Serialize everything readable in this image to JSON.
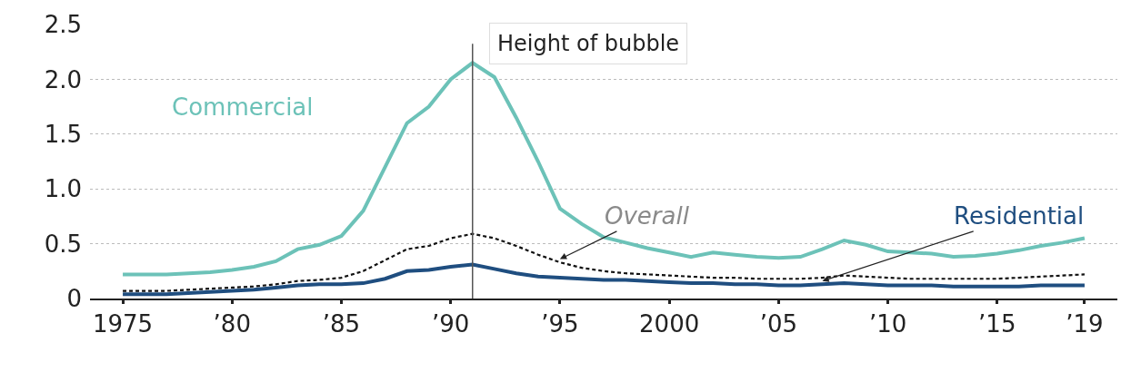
{
  "chart_data": {
    "type": "line",
    "x": [
      1975,
      1976,
      1977,
      1978,
      1979,
      1980,
      1981,
      1982,
      1983,
      1984,
      1985,
      1986,
      1987,
      1988,
      1989,
      1990,
      1991,
      1992,
      1993,
      1994,
      1995,
      1996,
      1997,
      1998,
      1999,
      2000,
      2001,
      2002,
      2003,
      2004,
      2005,
      2006,
      2007,
      2008,
      2009,
      2010,
      2011,
      2012,
      2013,
      2014,
      2015,
      2016,
      2017,
      2018,
      2019
    ],
    "series": [
      {
        "name": "Commercial",
        "color": "#6cc2b8",
        "line_style": "solid",
        "values": [
          0.22,
          0.22,
          0.22,
          0.23,
          0.24,
          0.26,
          0.29,
          0.34,
          0.45,
          0.49,
          0.57,
          0.8,
          1.2,
          1.6,
          1.75,
          2.0,
          2.15,
          2.02,
          1.65,
          1.25,
          0.82,
          0.68,
          0.56,
          0.51,
          0.46,
          0.42,
          0.38,
          0.42,
          0.4,
          0.38,
          0.37,
          0.38,
          0.45,
          0.53,
          0.49,
          0.43,
          0.42,
          0.41,
          0.38,
          0.39,
          0.41,
          0.44,
          0.48,
          0.51,
          0.55
        ]
      },
      {
        "name": "Overall",
        "color": "#111111",
        "line_style": "dashed",
        "values": [
          0.07,
          0.07,
          0.07,
          0.08,
          0.09,
          0.1,
          0.11,
          0.13,
          0.16,
          0.17,
          0.19,
          0.25,
          0.35,
          0.45,
          0.48,
          0.55,
          0.59,
          0.55,
          0.48,
          0.4,
          0.33,
          0.28,
          0.25,
          0.23,
          0.22,
          0.21,
          0.2,
          0.19,
          0.19,
          0.18,
          0.18,
          0.18,
          0.19,
          0.21,
          0.2,
          0.19,
          0.18,
          0.18,
          0.18,
          0.18,
          0.18,
          0.19,
          0.2,
          0.21,
          0.22
        ]
      },
      {
        "name": "Residential",
        "color": "#1f4e80",
        "line_style": "solid",
        "values": [
          0.04,
          0.04,
          0.04,
          0.05,
          0.06,
          0.07,
          0.08,
          0.1,
          0.12,
          0.13,
          0.13,
          0.14,
          0.18,
          0.25,
          0.26,
          0.29,
          0.31,
          0.27,
          0.23,
          0.2,
          0.19,
          0.18,
          0.17,
          0.17,
          0.16,
          0.15,
          0.14,
          0.14,
          0.13,
          0.13,
          0.12,
          0.12,
          0.13,
          0.14,
          0.13,
          0.12,
          0.12,
          0.12,
          0.11,
          0.11,
          0.11,
          0.11,
          0.12,
          0.12,
          0.12
        ]
      }
    ],
    "xlim": [
      1973.5,
      2020.5
    ],
    "xticks": [
      1975,
      {
        "value": 1980,
        "label": "’80"
      },
      {
        "value": 1985,
        "label": "’85"
      },
      {
        "value": 1990,
        "label": "’90"
      },
      {
        "value": 1995,
        "label": "’95"
      },
      2000,
      {
        "value": 2005,
        "label": "’05"
      },
      {
        "value": 2010,
        "label": "’10"
      },
      {
        "value": 2015,
        "label": "’15"
      },
      {
        "value": 2019,
        "label": "’19"
      }
    ],
    "ylim": [
      0,
      2.5
    ],
    "yticks": [
      0,
      {
        "value": 0.5,
        "label": "0.5"
      },
      {
        "value": 1,
        "label": "1.0"
      },
      {
        "value": 1.5,
        "label": "1.5"
      },
      {
        "value": 2,
        "label": "2.0"
      },
      {
        "value": 2.5,
        "label": "2.5"
      }
    ],
    "grid": "y",
    "legend": false,
    "ref_lines": [
      {
        "axis": "x",
        "value": 1991,
        "label": "Height of bubble",
        "color": "#555555"
      }
    ]
  }
}
